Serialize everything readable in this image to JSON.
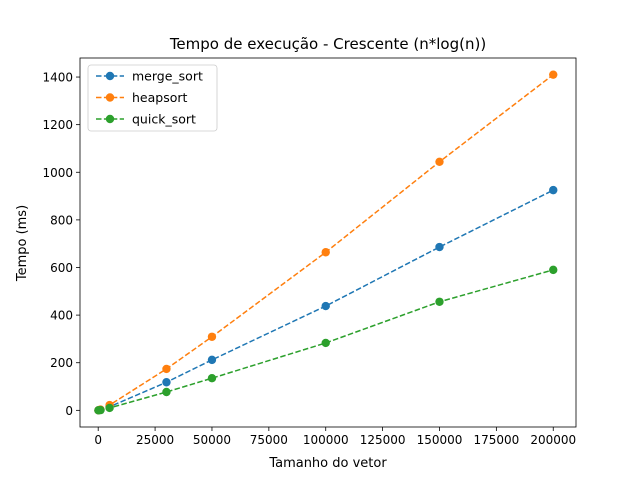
{
  "chart_data": {
    "type": "line",
    "title": "Tempo de execução - Crescente (n*log(n))",
    "xlabel": "Tamanho do vetor",
    "ylabel": "Tempo (ms)",
    "xlim": [
      -8000,
      210000
    ],
    "ylim": [
      -70,
      1480
    ],
    "xticks": [
      0,
      25000,
      50000,
      75000,
      100000,
      125000,
      150000,
      175000,
      200000
    ],
    "yticks": [
      0,
      200,
      400,
      600,
      800,
      1000,
      1200,
      1400
    ],
    "grid": false,
    "legend_position": "top-left",
    "line_style": "dashed",
    "marker": "circle",
    "x": [
      100,
      1000,
      5000,
      30000,
      50000,
      100000,
      150000,
      200000
    ],
    "series": [
      {
        "name": "merge_sort",
        "color": "#1f77b4",
        "values": [
          0,
          2,
          15,
          118,
          212,
          438,
          686,
          925
        ]
      },
      {
        "name": "heapsort",
        "color": "#ff7f0e",
        "values": [
          0,
          3,
          22,
          174,
          309,
          664,
          1044,
          1410
        ]
      },
      {
        "name": "quick_sort",
        "color": "#2ca02c",
        "values": [
          0,
          1,
          10,
          77,
          135,
          283,
          456,
          590
        ]
      }
    ]
  }
}
